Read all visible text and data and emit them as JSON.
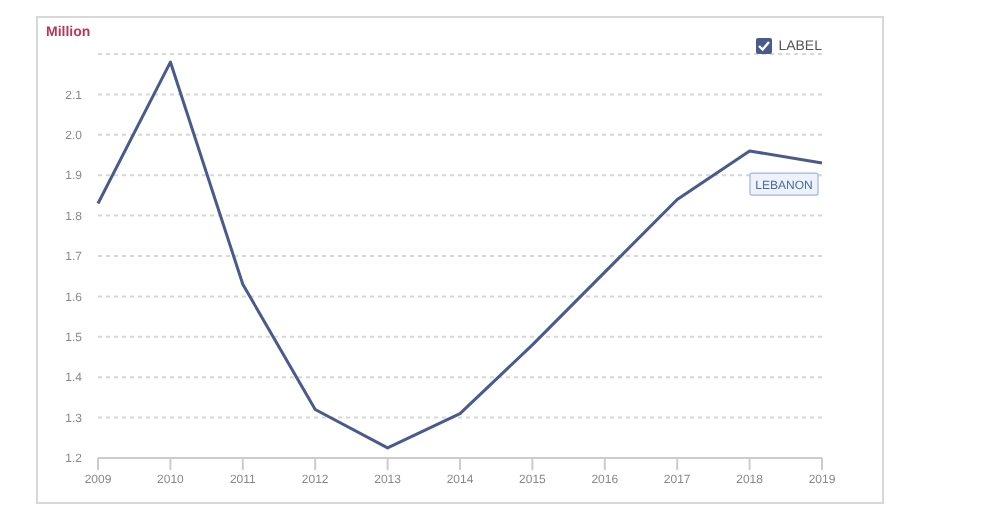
{
  "chart_data": {
    "type": "line",
    "ylabel": "Million",
    "legend_title": "LABEL",
    "legend": "top right",
    "grid": "y",
    "categories": [
      "2009",
      "2010",
      "2011",
      "2012",
      "2013",
      "2014",
      "2015",
      "2016",
      "2017",
      "2018",
      "2019"
    ],
    "series": [
      {
        "name": "LEBANON",
        "color": "#4a5a8c",
        "values": [
          1.83,
          2.18,
          1.63,
          1.32,
          1.225,
          1.31,
          1.48,
          1.66,
          1.84,
          1.96,
          1.93
        ]
      }
    ],
    "ylim": [
      1.2,
      2.2
    ],
    "yticks": [
      1.2,
      1.3,
      1.4,
      1.5,
      1.6,
      1.7,
      1.8,
      1.9,
      {
        "value": 2,
        "label": "2.0"
      },
      2.1
    ],
    "marker": "none",
    "line_style": "solid"
  }
}
